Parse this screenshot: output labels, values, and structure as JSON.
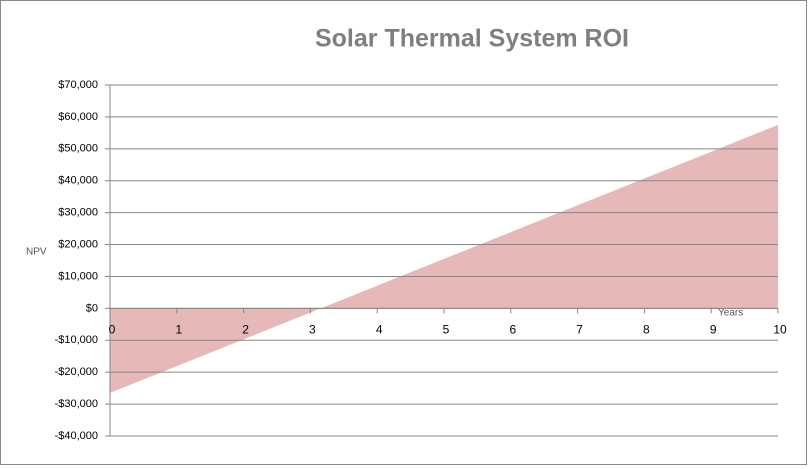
{
  "chart_data": {
    "type": "area",
    "title": "Solar Thermal System ROI",
    "x_label": "Years",
    "y_label": "NPV",
    "x": [
      0,
      1,
      2,
      3,
      4,
      5,
      6,
      7,
      8,
      9,
      10
    ],
    "values": [
      -26500,
      -18100,
      -9700,
      -1300,
      7100,
      15500,
      23900,
      32300,
      40700,
      49100,
      57500
    ],
    "color": "#e6b8b7",
    "xlim": [
      0,
      10
    ],
    "xticks": [
      0,
      1,
      2,
      3,
      4,
      5,
      6,
      7,
      8,
      9,
      10
    ],
    "ylim": [
      -40000,
      70000
    ],
    "yticks": [
      {
        "value": -40000,
        "label": "-$40,000"
      },
      {
        "value": -30000,
        "label": "-$30,000"
      },
      {
        "value": -20000,
        "label": "-$20,000"
      },
      {
        "value": -10000,
        "label": "-$10,000"
      },
      {
        "value": 0,
        "label": "$0"
      },
      {
        "value": 10000,
        "label": "$10,000"
      },
      {
        "value": 20000,
        "label": "$20,000"
      },
      {
        "value": 30000,
        "label": "$30,000"
      },
      {
        "value": 40000,
        "label": "$40,000"
      },
      {
        "value": 50000,
        "label": "$50,000"
      },
      {
        "value": 60000,
        "label": "$60,000"
      },
      {
        "value": 70000,
        "label": "$70,000"
      }
    ],
    "grid": true
  }
}
